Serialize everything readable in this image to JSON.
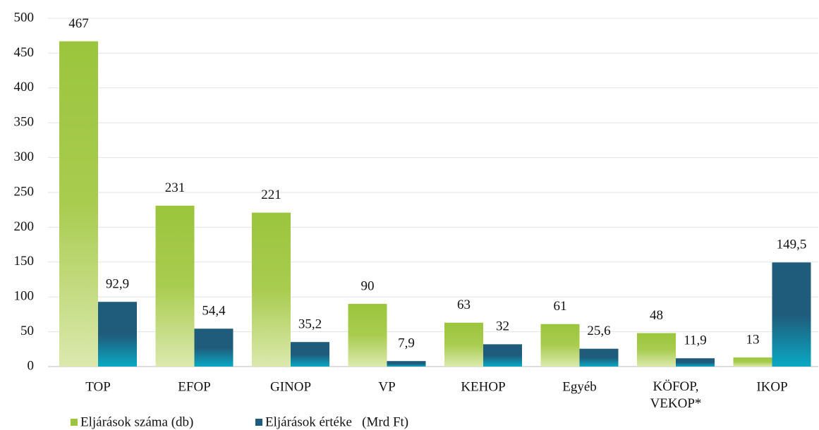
{
  "chart_data": {
    "type": "bar",
    "categories": [
      "TOP",
      "EFOP",
      "GINOP",
      "VP",
      "KEHOP",
      "Egyéb",
      "KÖFOP, VEKOP*",
      "IKOP"
    ],
    "series": [
      {
        "name": "Eljárások száma (db)",
        "color": "#9bc53d",
        "values": [
          467,
          231,
          221,
          90,
          63,
          61,
          48,
          13
        ]
      },
      {
        "name": "Eljárások értéke   (Mrd Ft)",
        "color": "#1f5b7a",
        "values": [
          92.9,
          54.4,
          35.2,
          7.9,
          32,
          25.6,
          11.9,
          149.5
        ],
        "value_labels": [
          "92,9",
          "54,4",
          "35,2",
          "7,9",
          "32",
          "25,6",
          "11,9",
          "149,5"
        ]
      }
    ],
    "ylim": [
      0,
      500
    ],
    "yticks": [
      0,
      50,
      100,
      150,
      200,
      250,
      300,
      350,
      400,
      450,
      500
    ],
    "grid": true,
    "legend": "bottom-left"
  }
}
